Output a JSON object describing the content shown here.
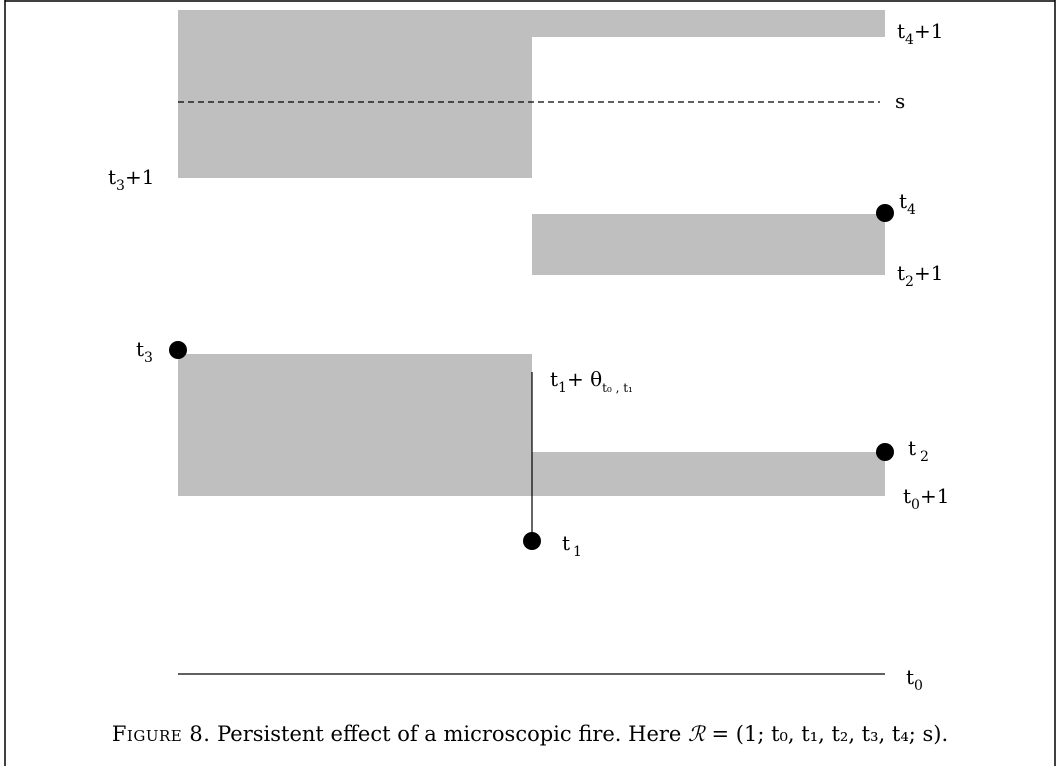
{
  "colors": {
    "region_fill": "#bfbfbf",
    "line": "#000000",
    "frame": "#000000"
  },
  "labels": {
    "t4_plus_1": {
      "base": "t",
      "sub": "4",
      "suffix": "+1"
    },
    "s": "s",
    "t3_plus_1": {
      "base": "t",
      "sub": "3",
      "suffix": "+1"
    },
    "t4": {
      "base": "t",
      "sub": "4"
    },
    "t2_plus_1": {
      "base": "t",
      "sub": "2",
      "suffix": "+1"
    },
    "t3": {
      "base": "t",
      "sub": "3"
    },
    "t1_plus_theta": {
      "base": "t",
      "sub": "1",
      "plus": "+ θ",
      "theta_sub": "t₀ , t₁"
    },
    "t2": {
      "base": "t",
      "sub": "2"
    },
    "t0_plus_1": {
      "base": "t",
      "sub": "0",
      "suffix": "+1"
    },
    "t1": {
      "base": "t",
      "sub": "1"
    },
    "t0": {
      "base": "t",
      "sub": "0"
    }
  },
  "caption": {
    "label": "Figure 8.",
    "text": "Persistent effect of a microscopic fire. Here",
    "formula_lhs": "ℛ",
    "formula_rhs": " = (1; t₀, t₁, t₂, t₃, t₄; s)."
  }
}
